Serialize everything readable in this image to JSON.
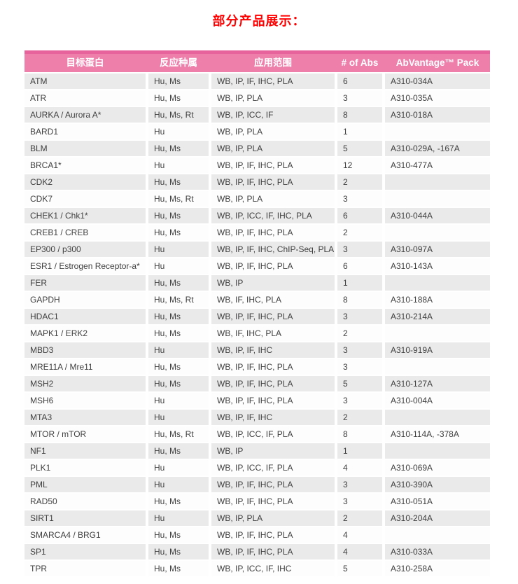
{
  "title": "部分产品展示：",
  "colors": {
    "title_red": "#FE0000",
    "header_pink": "#EE7FAB",
    "header_top_stripe": "#E7639B",
    "row_alt_gray": "#EBEAEB",
    "body_text": "#3F3F3F",
    "header_text": "#FFFFFF"
  },
  "table": {
    "headers": [
      "目标蛋白",
      "反应种属",
      "应用范围",
      "# of Abs",
      "AbVantage™ Pack"
    ],
    "rows": [
      [
        "ATM",
        "Hu, Ms",
        "WB, IP, IF, IHC, PLA",
        "6",
        "A310-034A"
      ],
      [
        "ATR",
        "Hu, Ms",
        "WB, IP, PLA",
        "3",
        "A310-035A"
      ],
      [
        "AURKA / Aurora A*",
        "Hu, Ms, Rt",
        "WB, IP, ICC, IF",
        "8",
        "A310-018A"
      ],
      [
        "BARD1",
        "Hu",
        "WB, IP, PLA",
        "1",
        ""
      ],
      [
        "BLM",
        "Hu, Ms",
        "WB, IP, PLA",
        "5",
        "A310-029A, -167A"
      ],
      [
        "BRCA1*",
        "Hu",
        "WB, IP, IF, IHC, PLA",
        "12",
        "A310-477A"
      ],
      [
        "CDK2",
        "Hu, Ms",
        "WB, IP, IF, IHC, PLA",
        "2",
        ""
      ],
      [
        "CDK7",
        "Hu, Ms, Rt",
        "WB, IP, PLA",
        "3",
        ""
      ],
      [
        "CHEK1 / Chk1*",
        "Hu, Ms",
        "WB, IP, ICC, IF, IHC, PLA",
        "6",
        "A310-044A"
      ],
      [
        "CREB1 / CREB",
        "Hu, Ms",
        "WB, IP, IF, IHC, PLA",
        "2",
        ""
      ],
      [
        "EP300 / p300",
        "Hu",
        "WB, IP, IF, IHC, ChIP-Seq, PLA",
        "3",
        "A310-097A"
      ],
      [
        "ESR1 / Estrogen Receptor-a*",
        "Hu",
        "WB, IP, IF, IHC, PLA",
        "6",
        "A310-143A"
      ],
      [
        "FER",
        "Hu, Ms",
        "WB, IP",
        "1",
        ""
      ],
      [
        "GAPDH",
        "Hu, Ms, Rt",
        "WB, IF, IHC, PLA",
        "8",
        "A310-188A"
      ],
      [
        "HDAC1",
        "Hu, Ms",
        "WB, IP, IF, IHC, PLA",
        "3",
        "A310-214A"
      ],
      [
        "MAPK1 / ERK2",
        "Hu, Ms",
        "WB, IF, IHC, PLA",
        "2",
        ""
      ],
      [
        "MBD3",
        "Hu",
        "WB, IP, IF, IHC",
        "3",
        "A310-919A"
      ],
      [
        "MRE11A / Mre11",
        "Hu, Ms",
        "WB, IP, IF, IHC, PLA",
        "3",
        ""
      ],
      [
        "MSH2",
        "Hu, Ms",
        "WB, IP, IF, IHC, PLA",
        "5",
        "A310-127A"
      ],
      [
        "MSH6",
        "Hu",
        "WB, IP, IF, IHC, PLA",
        "3",
        "A310-004A"
      ],
      [
        "MTA3",
        "Hu",
        "WB, IP, IF, IHC",
        "2",
        ""
      ],
      [
        "MTOR / mTOR",
        "Hu, Ms, Rt",
        "WB, IP, ICC, IF, PLA",
        "8",
        "A310-114A, -378A"
      ],
      [
        "NF1",
        "Hu, Ms",
        "WB, IP",
        "1",
        ""
      ],
      [
        "PLK1",
        "Hu",
        "WB, IP, ICC, IF, PLA",
        "4",
        "A310-069A"
      ],
      [
        "PML",
        "Hu",
        "WB, IP, IF, IHC, PLA",
        "3",
        "A310-390A"
      ],
      [
        "RAD50",
        "Hu, Ms",
        "WB, IP, IF, IHC, PLA",
        "3",
        "A310-051A"
      ],
      [
        "SIRT1",
        "Hu",
        "WB, IP, PLA",
        "2",
        "A310-204A"
      ],
      [
        "SMARCA4 / BRG1",
        "Hu, Ms",
        "WB, IP, IF, IHC, PLA",
        "4",
        ""
      ],
      [
        "SP1",
        "Hu, Ms",
        "WB, IP, IF, IHC, PLA",
        "4",
        "A310-033A"
      ],
      [
        "TPR",
        "Hu, Ms",
        "WB, IP, ICC, IF, IHC",
        "5",
        "A310-258A"
      ]
    ]
  }
}
